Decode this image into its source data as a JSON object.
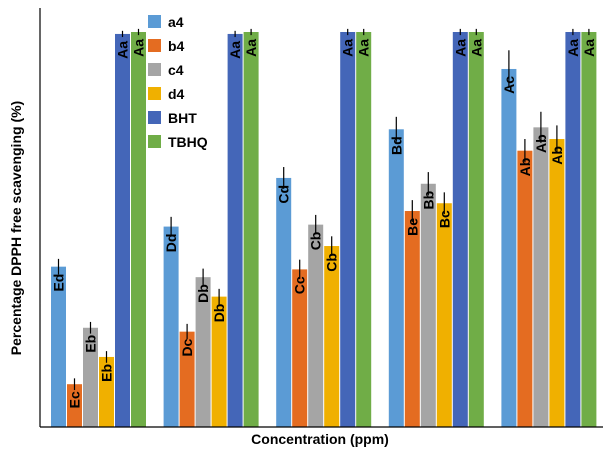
{
  "chart_data": {
    "type": "bar",
    "xlabel": "Concentration (ppm)",
    "ylabel": "Percentage DPPH free scavenging (%)",
    "ylim": [
      0,
      100
    ],
    "categories": [
      "",
      "",
      "",
      "",
      ""
    ],
    "legend_position": "top-left",
    "grid": false,
    "series": [
      {
        "name": "a4",
        "color": "#5b9bd5",
        "values": [
          41.2,
          51.5,
          64.0,
          76.5,
          92.0
        ],
        "errors": [
          2.0,
          2.5,
          2.8,
          3.2,
          4.8
        ],
        "labels": [
          "Ed",
          "Dd",
          "Cd",
          "Bd",
          "Ac"
        ]
      },
      {
        "name": "b4",
        "color": "#e46c21",
        "values": [
          11.0,
          24.5,
          40.5,
          55.5,
          71.0
        ],
        "errors": [
          1.5,
          2.0,
          2.5,
          2.8,
          3.0
        ],
        "labels": [
          "Ec",
          "Dc",
          "Cc",
          "Be",
          "Ab"
        ]
      },
      {
        "name": "c4",
        "color": "#a5a5a5",
        "values": [
          25.5,
          38.5,
          52.0,
          62.5,
          77.0
        ],
        "errors": [
          1.5,
          2.2,
          2.5,
          3.0,
          4.0
        ],
        "labels": [
          "Eb",
          "Db",
          "Cb",
          "Bb",
          "Ab"
        ]
      },
      {
        "name": "d4",
        "color": "#f0b000",
        "values": [
          18.0,
          33.5,
          46.5,
          57.5,
          74.0
        ],
        "errors": [
          1.5,
          2.0,
          2.5,
          2.8,
          3.5
        ],
        "labels": [
          "Eb",
          "Db",
          "Cb",
          "Bc",
          "Ab"
        ]
      },
      {
        "name": "BHT",
        "color": "#4466b8",
        "values": [
          101.0,
          101.0,
          101.5,
          101.5,
          101.5
        ],
        "errors": [
          0.8,
          0.8,
          0.8,
          0.8,
          0.8
        ],
        "labels": [
          "Aa",
          "Aa",
          "Aa",
          "Aa",
          "Aa"
        ]
      },
      {
        "name": "TBHQ",
        "color": "#70ad47",
        "values": [
          101.5,
          101.5,
          101.5,
          101.5,
          101.5
        ],
        "errors": [
          0.8,
          0.8,
          0.8,
          0.8,
          0.8
        ],
        "labels": [
          "Aa",
          "Aa",
          "Aa",
          "Aa",
          "Aa"
        ]
      }
    ]
  }
}
